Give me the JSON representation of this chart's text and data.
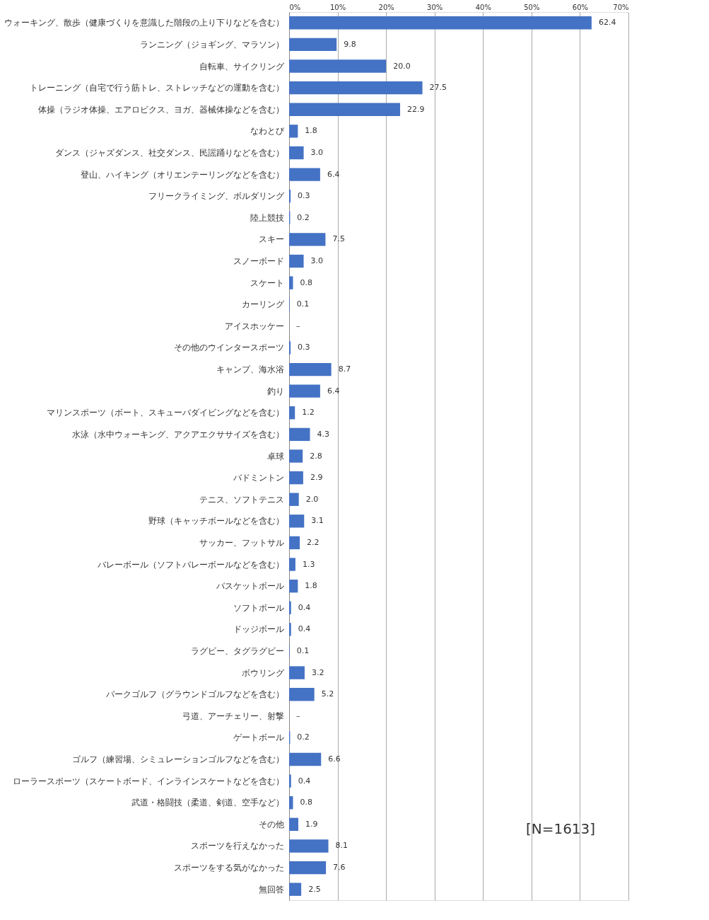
{
  "chart_data": {
    "type": "bar",
    "orientation": "horizontal",
    "color": "#4472c4",
    "grid": "x",
    "categories": [
      "ウォーキング、散歩（健康づくりを意識した階段の上り下りなどを含む）",
      "ランニング（ジョギング、マラソン）",
      "自転車、サイクリング",
      "トレーニング（自宅で行う筋トレ、ストレッチなどの運動を含む）",
      "体操（ラジオ体操、エアロビクス、ヨガ、器械体操などを含む）",
      "なわとび",
      "ダンス（ジャズダンス、社交ダンス、民謡踊りなどを含む）",
      "登山、ハイキング（オリエンテーリングなどを含む）",
      "フリークライミング、ボルダリング",
      "陸上競技",
      "スキー",
      "スノーボード",
      "スケート",
      "カーリング",
      "アイスホッケー",
      "その他のウインタースポーツ",
      "キャンプ、海水浴",
      "釣り",
      "マリンスポーツ（ボート、スキューバダイビングなどを含む）",
      "水泳（水中ウォーキング、アクアエクササイズを含む）",
      "卓球",
      "バドミントン",
      "テニス、ソフトテニス",
      "野球（キャッチボールなどを含む）",
      "サッカー、フットサル",
      "バレーボール（ソフトバレーボールなどを含む）",
      "バスケットボール",
      "ソフトボール",
      "ドッジボール",
      "ラグビー、タグラグビー",
      "ボウリング",
      "パークゴルフ（グラウンドゴルフなどを含む）",
      "弓道、アーチェリー、射撃",
      "ゲートボール",
      "ゴルフ（練習場、シミュレーションゴルフなどを含む）",
      "ローラースポーツ（スケートボード、インラインスケートなどを含む）",
      "武道・格闘技（柔道、剣道、空手など）",
      "その他",
      "スポーツを行えなかった",
      "スポーツをする気がなかった",
      "無回答"
    ],
    "values": [
      62.4,
      9.8,
      20.0,
      27.5,
      22.9,
      1.8,
      3.0,
      6.4,
      0.3,
      0.2,
      7.5,
      3.0,
      0.8,
      0.1,
      null,
      0.3,
      8.7,
      6.4,
      1.2,
      4.3,
      2.8,
      2.9,
      2.0,
      3.1,
      2.2,
      1.3,
      1.8,
      0.4,
      0.4,
      0.1,
      3.2,
      5.2,
      null,
      0.2,
      6.6,
      0.4,
      0.8,
      1.9,
      8.1,
      7.6,
      2.5
    ],
    "value_labels": [
      "62.4",
      "9.8",
      "20.0",
      "27.5",
      "22.9",
      "1.8",
      "3.0",
      "6.4",
      "0.3",
      "0.2",
      "7.5",
      "3.0",
      "0.8",
      "0.1",
      "–",
      "0.3",
      "8.7",
      "6.4",
      "1.2",
      "4.3",
      "2.8",
      "2.9",
      "2.0",
      "3.1",
      "2.2",
      "1.3",
      "1.8",
      "0.4",
      "0.4",
      "0.1",
      "3.2",
      "5.2",
      "–",
      "0.2",
      "6.6",
      "0.4",
      "0.8",
      "1.9",
      "8.1",
      "7.6",
      "2.5"
    ],
    "xlim": [
      0,
      70
    ],
    "xticks": [
      {
        "value": 0,
        "label": "0%"
      },
      {
        "value": 10,
        "label": "10%"
      },
      {
        "value": 20,
        "label": "20%"
      },
      {
        "value": 30,
        "label": "30%"
      },
      {
        "value": 40,
        "label": "40%"
      },
      {
        "value": 50,
        "label": "50%"
      },
      {
        "value": 60,
        "label": "60%"
      },
      {
        "value": 70,
        "label": "70%"
      }
    ],
    "annotations": [
      "[N=1613]"
    ]
  }
}
